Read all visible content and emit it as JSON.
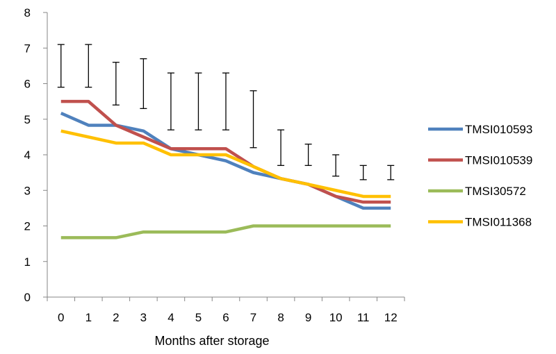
{
  "chart_data": {
    "type": "line",
    "title": "",
    "xlabel": "Months after storage",
    "ylabel": "",
    "x": [
      0,
      1,
      2,
      3,
      4,
      5,
      6,
      7,
      8,
      9,
      10,
      11,
      12
    ],
    "ylim": [
      0,
      8
    ],
    "yticks": [
      0,
      1,
      2,
      3,
      4,
      5,
      6,
      7,
      8
    ],
    "grid": false,
    "legend_position": "right",
    "series": [
      {
        "name": "TMSI010593",
        "color": "#4F81BD",
        "values": [
          5.17,
          4.83,
          4.83,
          4.67,
          4.17,
          4.0,
          3.83,
          3.5,
          3.33,
          3.17,
          2.83,
          2.5,
          2.5
        ]
      },
      {
        "name": "TMSI010539",
        "color": "#C0504D",
        "values": [
          5.5,
          5.5,
          4.83,
          4.5,
          4.17,
          4.17,
          4.17,
          3.67,
          3.33,
          3.17,
          2.83,
          2.67,
          2.67
        ]
      },
      {
        "name": "TMSI30572",
        "color": "#9BBB59",
        "values": [
          1.67,
          1.67,
          1.67,
          1.83,
          1.83,
          1.83,
          1.83,
          2.0,
          2.0,
          2.0,
          2.0,
          2.0,
          2.0
        ]
      },
      {
        "name": "TMSI011368",
        "color": "#FFC000",
        "values": [
          4.67,
          4.5,
          4.33,
          4.33,
          4.0,
          4.0,
          4.0,
          3.67,
          3.33,
          3.17,
          3.0,
          2.83,
          2.83
        ]
      }
    ],
    "error_bars": {
      "color": "#000000",
      "low": [
        5.9,
        5.9,
        5.4,
        5.3,
        4.7,
        4.7,
        4.7,
        4.2,
        3.7,
        3.7,
        3.4,
        3.3,
        3.3
      ],
      "high": [
        7.1,
        7.1,
        6.6,
        6.7,
        6.3,
        6.3,
        6.3,
        5.8,
        4.7,
        4.3,
        4.0,
        3.7,
        3.7
      ]
    }
  }
}
